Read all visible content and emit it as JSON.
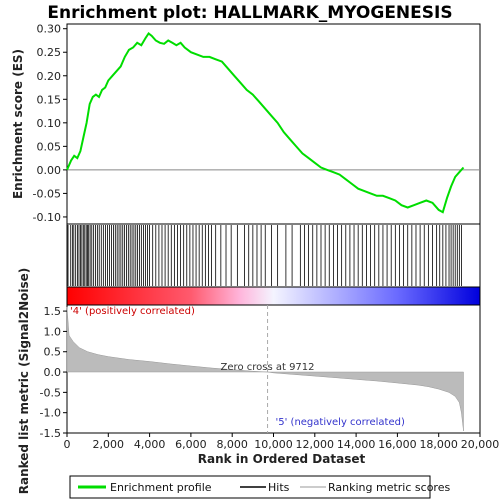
{
  "chart_data": {
    "type": "line",
    "title": "Enrichment plot: HALLMARK_MYOGENESIS",
    "colors": {
      "enrichment": "#00dd00",
      "hits": "#000000",
      "ranking_fill": "#bbbbbb",
      "zero_line": "#999999",
      "positive_label": "#cc0000",
      "negative_label": "#3333cc"
    },
    "top_panel": {
      "ylabel": "Enrichment score (ES)",
      "ylim": [
        -0.115,
        0.31
      ],
      "yticks": [
        "-0.10",
        "-0.05",
        "0.00",
        "0.05",
        "0.10",
        "0.15",
        "0.20",
        "0.25",
        "0.30"
      ],
      "ytick_values": [
        -0.1,
        -0.05,
        0.0,
        0.05,
        0.1,
        0.15,
        0.2,
        0.25,
        0.3
      ],
      "series": [
        {
          "name": "Enrichment profile",
          "x": [
            0,
            200,
            350,
            500,
            650,
            800,
            950,
            1100,
            1250,
            1400,
            1550,
            1700,
            1850,
            2000,
            2200,
            2400,
            2600,
            2800,
            3000,
            3200,
            3400,
            3600,
            3800,
            3950,
            4100,
            4300,
            4500,
            4700,
            4900,
            5100,
            5300,
            5500,
            5700,
            6000,
            6300,
            6600,
            6900,
            7200,
            7500,
            7800,
            8100,
            8400,
            8700,
            9000,
            9300,
            9600,
            9900,
            10200,
            10500,
            10800,
            11100,
            11400,
            11700,
            12000,
            12300,
            12600,
            12900,
            13200,
            13500,
            13800,
            14100,
            14400,
            14700,
            15000,
            15300,
            15600,
            15900,
            16200,
            16500,
            16800,
            17100,
            17400,
            17700,
            18000,
            18200,
            18400,
            18600,
            18800,
            19000,
            19200
          ],
          "y": [
            0.0,
            0.02,
            0.03,
            0.025,
            0.04,
            0.07,
            0.1,
            0.14,
            0.155,
            0.16,
            0.155,
            0.17,
            0.175,
            0.19,
            0.2,
            0.21,
            0.22,
            0.24,
            0.255,
            0.26,
            0.27,
            0.265,
            0.28,
            0.29,
            0.285,
            0.275,
            0.27,
            0.268,
            0.275,
            0.27,
            0.265,
            0.27,
            0.26,
            0.25,
            0.245,
            0.24,
            0.24,
            0.235,
            0.23,
            0.215,
            0.2,
            0.185,
            0.17,
            0.16,
            0.145,
            0.13,
            0.115,
            0.1,
            0.08,
            0.065,
            0.05,
            0.035,
            0.025,
            0.015,
            0.005,
            0.0,
            -0.005,
            -0.01,
            -0.02,
            -0.03,
            -0.04,
            -0.045,
            -0.05,
            -0.055,
            -0.055,
            -0.06,
            -0.065,
            -0.075,
            -0.08,
            -0.075,
            -0.07,
            -0.065,
            -0.07,
            -0.085,
            -0.09,
            -0.06,
            -0.035,
            -0.015,
            -0.005,
            0.005
          ]
        }
      ]
    },
    "hits_x": [
      50,
      180,
      260,
      330,
      420,
      510,
      580,
      650,
      720,
      790,
      860,
      930,
      990,
      1050,
      1120,
      1200,
      1290,
      1380,
      1470,
      1560,
      1660,
      1760,
      1860,
      1960,
      2060,
      2150,
      2250,
      2340,
      2430,
      2520,
      2610,
      2700,
      2790,
      2880,
      2970,
      3060,
      3150,
      3240,
      3330,
      3420,
      3510,
      3600,
      3700,
      3800,
      3900,
      4000,
      4150,
      4300,
      4450,
      4600,
      4750,
      4900,
      5050,
      5200,
      5350,
      5500,
      5650,
      5800,
      5950,
      6100,
      6250,
      6400,
      6550,
      6700,
      6850,
      7000,
      7200,
      7450,
      7700,
      7950,
      8250,
      8600,
      8800,
      9000,
      9200,
      9400,
      9600,
      9900,
      10200,
      10600,
      10900,
      11300,
      11500,
      11700,
      11900,
      12100,
      12300,
      12500,
      12700,
      12900,
      13100,
      13300,
      13500,
      13700,
      13900,
      14100,
      14300,
      14500,
      14700,
      14900,
      15100,
      15300,
      15500,
      15700,
      15900,
      16100,
      16300,
      16500,
      16700,
      16900,
      17100,
      17300,
      17500,
      17700,
      17900,
      18050,
      18200,
      18350,
      18500,
      18600,
      18700,
      18800,
      18900,
      19000,
      19100
    ],
    "rank_panel": {
      "ylabel": "Ranked list metric (Signal2Noise)",
      "xlabel": "Rank in Ordered Dataset",
      "ylim": [
        -1.5,
        1.65
      ],
      "yticks": [
        "-1.5",
        "-1.0",
        "-0.5",
        "0.0",
        "0.5",
        "1.0",
        "1.5"
      ],
      "ytick_values": [
        -1.5,
        -1.0,
        -0.5,
        0.0,
        0.5,
        1.0,
        1.5
      ],
      "series": [
        {
          "name": "Ranking metric scores",
          "x": [
            0,
            100,
            300,
            600,
            1000,
            1500,
            2000,
            3000,
            4000,
            5000,
            6000,
            7000,
            8000,
            9000,
            9712,
            10000,
            11000,
            12000,
            13000,
            14000,
            15000,
            16000,
            17000,
            17500,
            18000,
            18500,
            18800,
            19000,
            19100,
            19200
          ],
          "y": [
            1.6,
            0.9,
            0.75,
            0.6,
            0.5,
            0.43,
            0.38,
            0.31,
            0.26,
            0.2,
            0.15,
            0.1,
            0.06,
            0.02,
            0.0,
            -0.02,
            -0.06,
            -0.1,
            -0.14,
            -0.18,
            -0.22,
            -0.27,
            -0.32,
            -0.36,
            -0.42,
            -0.5,
            -0.6,
            -0.75,
            -1.0,
            -1.45
          ]
        }
      ]
    },
    "xlim": [
      0,
      20000
    ],
    "xticks": [
      "0",
      "2,000",
      "4,000",
      "6,000",
      "8,000",
      "10,000",
      "12,000",
      "14,000",
      "16,000",
      "18,000",
      "20,000"
    ],
    "xtick_values": [
      0,
      2000,
      4000,
      6000,
      8000,
      10000,
      12000,
      14000,
      16000,
      18000,
      20000
    ],
    "zero_cross_x": 9712,
    "zero_cross_label": "Zero cross at 9712",
    "positive_label": "'4' (positively correlated)",
    "negative_label": "'5' (negatively correlated)",
    "legend": {
      "placement": "bottom",
      "items": [
        {
          "label": "Enrichment profile",
          "kind": "enrichment"
        },
        {
          "label": "Hits",
          "kind": "hits"
        },
        {
          "label": "Ranking metric scores",
          "kind": "ranking"
        }
      ]
    }
  }
}
